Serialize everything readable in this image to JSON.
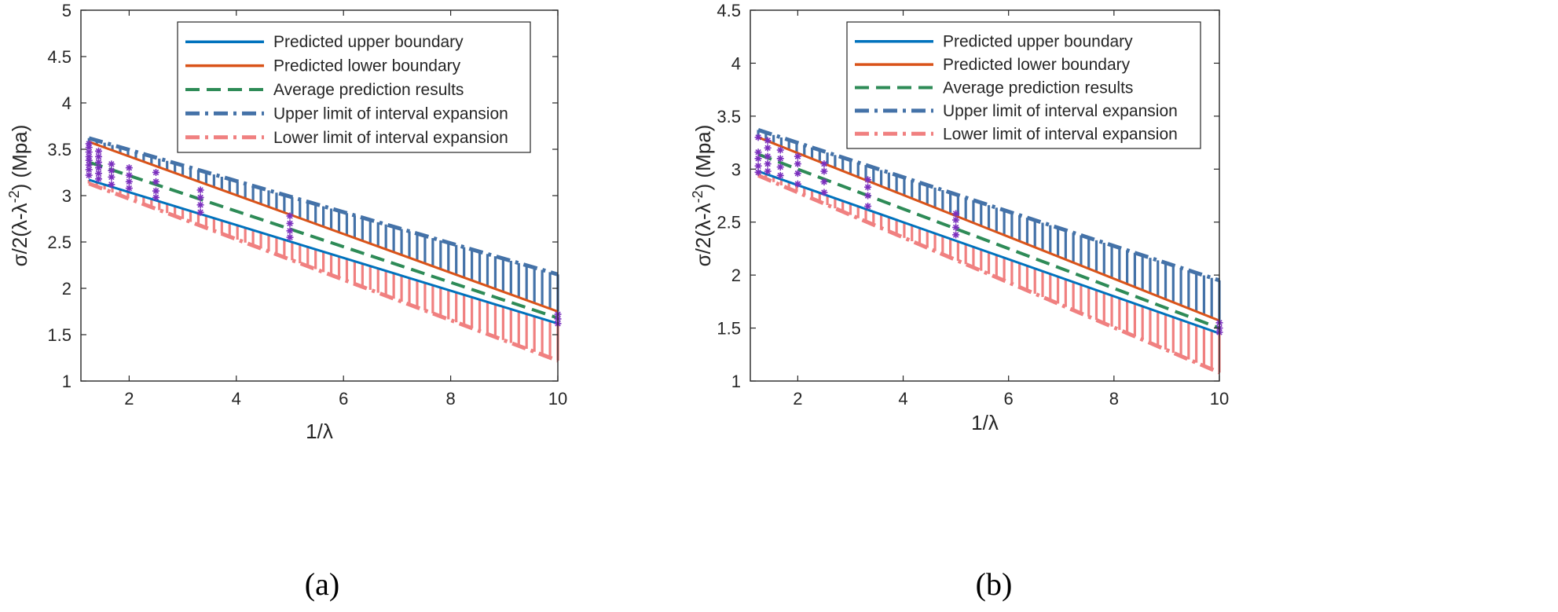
{
  "chart_data": [
    {
      "type": "line",
      "caption": "(a)",
      "xlabel": "1/λ",
      "ylabel": "σ/2(λ-λ^-2) (Mpa)",
      "xlim": [
        1.1,
        10
      ],
      "ylim": [
        1,
        5
      ],
      "xticks": [
        2,
        4,
        6,
        8,
        10
      ],
      "xtick_labels": [
        "2",
        "4",
        "6",
        "8",
        "10"
      ],
      "yticks": [
        1,
        1.5,
        2,
        2.5,
        3,
        3.5,
        4,
        4.5,
        5
      ],
      "ytick_labels": [
        "1",
        "1.5",
        "2",
        "2.5",
        "3",
        "3.5",
        "4",
        "4.5",
        "5"
      ],
      "legend_position": "top-right",
      "series": [
        {
          "name": "Predicted upper boundary",
          "style": "solid",
          "color": "#0072BD",
          "x": [
            1.25,
            10
          ],
          "y": [
            3.17,
            1.62
          ]
        },
        {
          "name": "Predicted lower boundary",
          "style": "solid",
          "color": "#D95319",
          "x": [
            1.25,
            10
          ],
          "y": [
            3.58,
            1.75
          ]
        },
        {
          "name": "Average prediction results",
          "style": "dashed",
          "color": "#2E8B57",
          "x": [
            1.25,
            10
          ],
          "y": [
            3.36,
            1.68
          ]
        },
        {
          "name": "Upper limit of interval expansion",
          "style": "dashdot",
          "color": "#4472A8",
          "x": [
            1.25,
            10
          ],
          "y": [
            3.62,
            2.15
          ]
        },
        {
          "name": "Lower limit of interval expansion",
          "style": "dashdot",
          "color": "#F08080",
          "x": [
            1.25,
            10
          ],
          "y": [
            3.13,
            1.22
          ]
        }
      ],
      "scatter": {
        "color": "#7B2FBE",
        "groups": [
          {
            "x": 1.25,
            "y": [
              3.22,
              3.28,
              3.33,
              3.38,
              3.42,
              3.47,
              3.52,
              3.56
            ]
          },
          {
            "x": 1.43,
            "y": [
              3.18,
              3.24,
              3.3,
              3.36,
              3.42,
              3.48
            ]
          },
          {
            "x": 1.67,
            "y": [
              3.12,
              3.2,
              3.27,
              3.34
            ]
          },
          {
            "x": 2.0,
            "y": [
              3.08,
              3.15,
              3.22,
              3.3
            ]
          },
          {
            "x": 2.5,
            "y": [
              2.98,
              3.05,
              3.15,
              3.25
            ]
          },
          {
            "x": 3.33,
            "y": [
              2.82,
              2.9,
              2.98,
              3.06
            ]
          },
          {
            "x": 5.0,
            "y": [
              2.55,
              2.62,
              2.7,
              2.78
            ]
          },
          {
            "x": 10.0,
            "y": [
              1.62,
              1.67,
              1.72
            ]
          }
        ]
      }
    },
    {
      "type": "line",
      "caption": "(b)",
      "xlabel": "1/λ",
      "ylabel": "σ/2(λ-λ^-2) (Mpa)",
      "xlim": [
        1.1,
        10
      ],
      "ylim": [
        1,
        4.5
      ],
      "xticks": [
        2,
        4,
        6,
        8,
        10
      ],
      "xtick_labels": [
        "2",
        "4",
        "6",
        "8",
        "10"
      ],
      "yticks": [
        1,
        1.5,
        2,
        2.5,
        3,
        3.5,
        4,
        4.5
      ],
      "ytick_labels": [
        "1",
        "1.5",
        "2",
        "2.5",
        "3",
        "3.5",
        "4",
        "4.5"
      ],
      "legend_position": "top-right",
      "series": [
        {
          "name": "Predicted upper boundary",
          "style": "solid",
          "color": "#0072BD",
          "x": [
            1.25,
            10
          ],
          "y": [
            2.98,
            1.45
          ]
        },
        {
          "name": "Predicted lower boundary",
          "style": "solid",
          "color": "#D95319",
          "x": [
            1.25,
            10
          ],
          "y": [
            3.3,
            1.57
          ]
        },
        {
          "name": "Average prediction results",
          "style": "dashed",
          "color": "#2E8B57",
          "x": [
            1.25,
            10
          ],
          "y": [
            3.14,
            1.5
          ]
        },
        {
          "name": "Upper limit of interval expansion",
          "style": "dashdot",
          "color": "#4472A8",
          "x": [
            1.25,
            10
          ],
          "y": [
            3.37,
            1.95
          ]
        },
        {
          "name": "Lower limit of interval expansion",
          "style": "dashdot",
          "color": "#F08080",
          "x": [
            1.25,
            10
          ],
          "y": [
            2.94,
            1.08
          ]
        }
      ],
      "scatter": {
        "color": "#7B2FBE",
        "groups": [
          {
            "x": 1.25,
            "y": [
              2.97,
              3.03,
              3.1,
              3.16,
              3.3
            ]
          },
          {
            "x": 1.43,
            "y": [
              2.98,
              3.05,
              3.12,
              3.2,
              3.27
            ]
          },
          {
            "x": 1.67,
            "y": [
              2.94,
              3.02,
              3.1,
              3.18
            ]
          },
          {
            "x": 2.0,
            "y": [
              2.86,
              2.96,
              3.05,
              3.12
            ]
          },
          {
            "x": 2.5,
            "y": [
              2.78,
              2.88,
              2.98,
              3.05
            ]
          },
          {
            "x": 3.33,
            "y": [
              2.65,
              2.75,
              2.83,
              2.9
            ]
          },
          {
            "x": 5.0,
            "y": [
              2.38,
              2.45,
              2.52,
              2.58
            ]
          },
          {
            "x": 10.0,
            "y": [
              1.46,
              1.5,
              1.55
            ]
          }
        ]
      }
    }
  ]
}
